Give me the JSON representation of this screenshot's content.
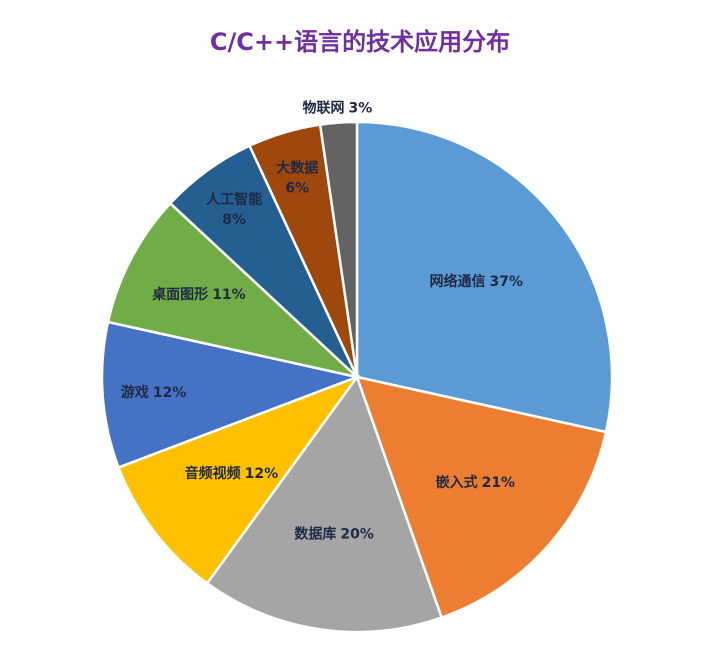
{
  "chart_data": {
    "type": "pie",
    "title": "C/C++语言的技术应用分布",
    "slices": [
      {
        "name": "网络通信",
        "value": 37,
        "label": "37%",
        "color": "#5b9bd5"
      },
      {
        "name": "嵌入式",
        "value": 21,
        "label": "21%",
        "color": "#ed7d31"
      },
      {
        "name": "数据库",
        "value": 20,
        "label": "20%",
        "color": "#a5a5a5"
      },
      {
        "name": "音频视频",
        "value": 12,
        "label": "12%",
        "color": "#ffc000"
      },
      {
        "name": "游戏",
        "value": 12,
        "label": "12%",
        "color": "#4472c4"
      },
      {
        "name": "桌面图形",
        "value": 11,
        "label": "11%",
        "color": "#70ad47"
      },
      {
        "name": "人工智能",
        "value": 8,
        "label": "8%",
        "color": "#255e91"
      },
      {
        "name": "大数据",
        "value": 6,
        "label": "6%",
        "color": "#9e480e"
      },
      {
        "name": "物联网",
        "value": 3,
        "label": "3%",
        "color": "#636363"
      }
    ]
  }
}
